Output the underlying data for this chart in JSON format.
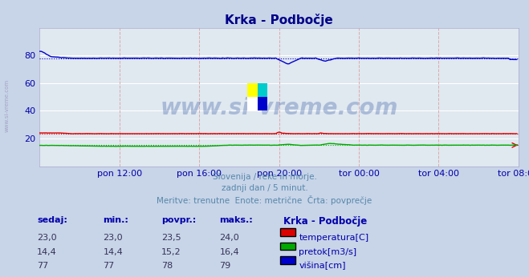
{
  "title": "Krka - Podbočje",
  "bg_color": "#c8d4e8",
  "plot_bg_color": "#e0e8f0",
  "grid_color_h": "#ffffff",
  "grid_color_v": "#ddaaaa",
  "xlabel_ticks": [
    "pon 12:00",
    "pon 16:00",
    "pon 20:00",
    "tor 00:00",
    "tor 04:00",
    "tor 08:00"
  ],
  "ylabel_ticks": [
    20,
    40,
    60,
    80
  ],
  "ylim": [
    0,
    100
  ],
  "xlim": [
    0,
    288
  ],
  "subtitle_lines": [
    "Slovenija / reke in morje.",
    "zadnji dan / 5 minut.",
    "Meritve: trenutne  Enote: metrične  Črta: povprečje"
  ],
  "table_headers": [
    "sedaj:",
    "min.:",
    "povpr.:",
    "maks.:"
  ],
  "table_station": "Krka - Podbočje",
  "table_data": [
    {
      "sedaj": "23,0",
      "min": "23,0",
      "povpr": "23,5",
      "maks": "24,0",
      "label": "temperatura[C]",
      "color": "#dd0000"
    },
    {
      "sedaj": "14,4",
      "min": "14,4",
      "povpr": "15,2",
      "maks": "16,4",
      "label": "pretok[m3/s]",
      "color": "#00aa00"
    },
    {
      "sedaj": "77",
      "min": "77",
      "povpr": "78",
      "maks": "79",
      "label": "višina[cm]",
      "color": "#0000cc"
    }
  ],
  "watermark_text": "www.si-vreme.com",
  "watermark_color": "#4466aa",
  "watermark_alpha": 0.35,
  "temp_color": "#dd0000",
  "pretok_color": "#00aa00",
  "visina_color": "#0000cc",
  "temp_avg": 23.5,
  "pretok_avg": 15.2,
  "visina_avg": 78.0,
  "n_points": 288,
  "tick_x_positions": [
    48,
    96,
    144,
    192,
    240,
    288
  ]
}
